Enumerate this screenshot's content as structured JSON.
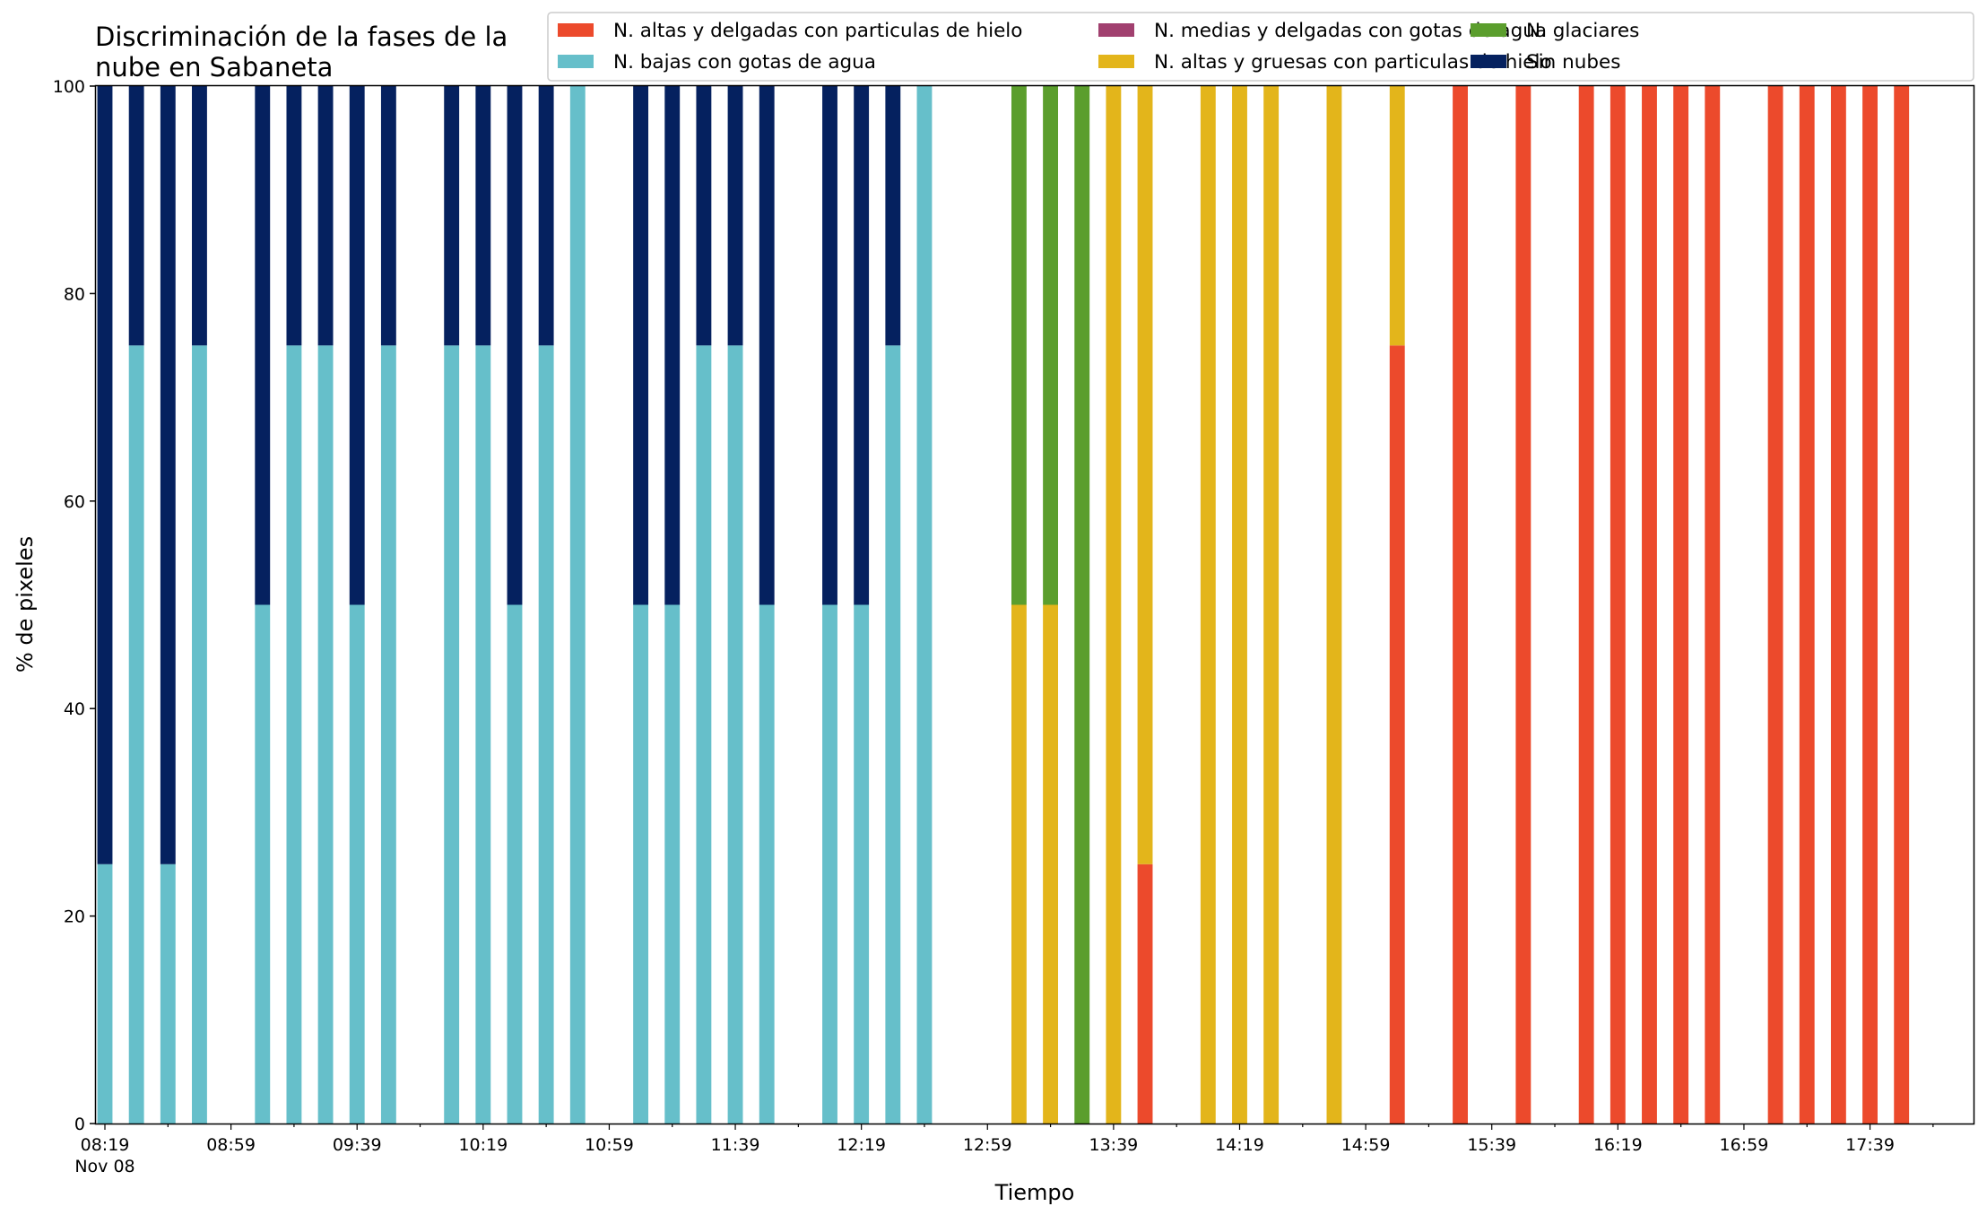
{
  "chart_data": {
    "type": "bar",
    "stacked": true,
    "title_lines": [
      "Discriminación de la fases de la",
      "nube en Sabaneta"
    ],
    "xlabel": "Tiempo",
    "ylabel": "% de pixeles",
    "ylim": [
      0,
      100
    ],
    "yticks": [
      0,
      20,
      40,
      60,
      80,
      100
    ],
    "x_range": [
      "08:19",
      "18:09"
    ],
    "x_slot_minutes": 10,
    "x_tick_labels": [
      "08:19",
      "08:59",
      "09:39",
      "10:19",
      "10:59",
      "11:39",
      "12:19",
      "12:59",
      "13:39",
      "14:19",
      "14:59",
      "15:39",
      "16:19",
      "16:59",
      "17:39"
    ],
    "x_date_label": "Nov 08",
    "grid": false,
    "legend_position": "top-right",
    "series": [
      {
        "name": "N. altas y delgadas con particulas de hielo",
        "color": "#ec4a2c"
      },
      {
        "name": "N. altas y gruesas con particulas de hielo",
        "color": "#e3b51b"
      },
      {
        "name": "N. bajas con gotas de agua",
        "color": "#66bfca"
      },
      {
        "name": "N. glaciares",
        "color": "#5b9e2d"
      },
      {
        "name": "N. medias y delgadas con gotas de agua",
        "color": "#a1406f"
      },
      {
        "name": "Sin nubes",
        "color": "#05215f"
      }
    ],
    "legend_order": [
      0,
      2,
      4,
      1,
      3,
      5
    ],
    "bars": [
      {
        "time": "08:19",
        "values": [
          0,
          0,
          25,
          0,
          0,
          75
        ]
      },
      {
        "time": "08:29",
        "values": [
          0,
          0,
          75,
          0,
          0,
          25
        ]
      },
      {
        "time": "08:39",
        "values": [
          0,
          0,
          25,
          0,
          0,
          75
        ]
      },
      {
        "time": "08:49",
        "values": [
          0,
          0,
          75,
          0,
          0,
          25
        ]
      },
      {
        "time": "09:09",
        "values": [
          0,
          0,
          50,
          0,
          0,
          50
        ]
      },
      {
        "time": "09:19",
        "values": [
          0,
          0,
          75,
          0,
          0,
          25
        ]
      },
      {
        "time": "09:29",
        "values": [
          0,
          0,
          75,
          0,
          0,
          25
        ]
      },
      {
        "time": "09:39",
        "values": [
          0,
          0,
          50,
          0,
          0,
          50
        ]
      },
      {
        "time": "09:49",
        "values": [
          0,
          0,
          75,
          0,
          0,
          25
        ]
      },
      {
        "time": "10:09",
        "values": [
          0,
          0,
          75,
          0,
          0,
          25
        ]
      },
      {
        "time": "10:19",
        "values": [
          0,
          0,
          75,
          0,
          0,
          25
        ]
      },
      {
        "time": "10:29",
        "values": [
          0,
          0,
          50,
          0,
          0,
          50
        ]
      },
      {
        "time": "10:39",
        "values": [
          0,
          0,
          75,
          0,
          0,
          25
        ]
      },
      {
        "time": "10:49",
        "values": [
          0,
          0,
          100,
          0,
          0,
          0
        ]
      },
      {
        "time": "11:09",
        "values": [
          0,
          0,
          50,
          0,
          0,
          50
        ]
      },
      {
        "time": "11:19",
        "values": [
          0,
          0,
          50,
          0,
          0,
          50
        ]
      },
      {
        "time": "11:29",
        "values": [
          0,
          0,
          75,
          0,
          0,
          25
        ]
      },
      {
        "time": "11:39",
        "values": [
          0,
          0,
          75,
          0,
          0,
          25
        ]
      },
      {
        "time": "11:49",
        "values": [
          0,
          0,
          50,
          0,
          0,
          50
        ]
      },
      {
        "time": "12:09",
        "values": [
          0,
          0,
          50,
          0,
          0,
          50
        ]
      },
      {
        "time": "12:19",
        "values": [
          0,
          0,
          50,
          0,
          0,
          50
        ]
      },
      {
        "time": "12:29",
        "values": [
          0,
          0,
          75,
          0,
          0,
          25
        ]
      },
      {
        "time": "12:39",
        "values": [
          0,
          0,
          100,
          0,
          0,
          0
        ]
      },
      {
        "time": "13:09",
        "values": [
          0,
          50,
          0,
          50,
          0,
          0
        ]
      },
      {
        "time": "13:19",
        "values": [
          0,
          50,
          0,
          50,
          0,
          0
        ]
      },
      {
        "time": "13:29",
        "values": [
          0,
          0,
          0,
          100,
          0,
          0
        ]
      },
      {
        "time": "13:39",
        "values": [
          0,
          100,
          0,
          0,
          0,
          0
        ]
      },
      {
        "time": "13:49",
        "values": [
          25,
          75,
          0,
          0,
          0,
          0
        ]
      },
      {
        "time": "14:09",
        "values": [
          0,
          100,
          0,
          0,
          0,
          0
        ]
      },
      {
        "time": "14:19",
        "values": [
          0,
          100,
          0,
          0,
          0,
          0
        ]
      },
      {
        "time": "14:29",
        "values": [
          0,
          100,
          0,
          0,
          0,
          0
        ]
      },
      {
        "time": "14:49",
        "values": [
          0,
          100,
          0,
          0,
          0,
          0
        ]
      },
      {
        "time": "15:09",
        "values": [
          75,
          25,
          0,
          0,
          0,
          0
        ]
      },
      {
        "time": "15:29",
        "values": [
          100,
          0,
          0,
          0,
          0,
          0
        ]
      },
      {
        "time": "15:49",
        "values": [
          100,
          0,
          0,
          0,
          0,
          0
        ]
      },
      {
        "time": "16:09",
        "values": [
          100,
          0,
          0,
          0,
          0,
          0
        ]
      },
      {
        "time": "16:19",
        "values": [
          100,
          0,
          0,
          0,
          0,
          0
        ]
      },
      {
        "time": "16:29",
        "values": [
          100,
          0,
          0,
          0,
          0,
          0
        ]
      },
      {
        "time": "16:39",
        "values": [
          100,
          0,
          0,
          0,
          0,
          0
        ]
      },
      {
        "time": "16:49",
        "values": [
          100,
          0,
          0,
          0,
          0,
          0
        ]
      },
      {
        "time": "17:09",
        "values": [
          100,
          0,
          0,
          0,
          0,
          0
        ]
      },
      {
        "time": "17:19",
        "values": [
          100,
          0,
          0,
          0,
          0,
          0
        ]
      },
      {
        "time": "17:29",
        "values": [
          100,
          0,
          0,
          0,
          0,
          0
        ]
      },
      {
        "time": "17:39",
        "values": [
          100,
          0,
          0,
          0,
          0,
          0
        ]
      },
      {
        "time": "17:49",
        "values": [
          100,
          0,
          0,
          0,
          0,
          0
        ]
      }
    ]
  }
}
